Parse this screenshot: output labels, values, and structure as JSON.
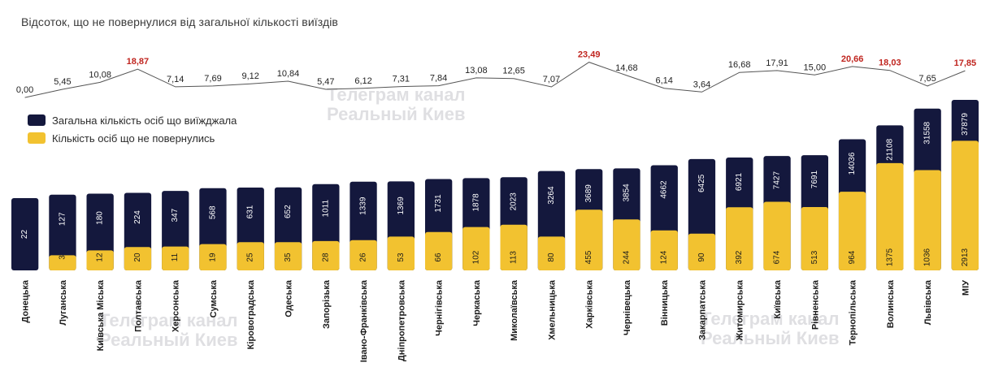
{
  "chart_data": {
    "type": "bar",
    "title": "Відсоток, що не повернулися від загальної кількості виїздів",
    "categories": [
      "Донецька",
      "Луганська",
      "Київська Міська",
      "Полтавська",
      "Херсонська",
      "Сумська",
      "Кіровоградська",
      "Одеська",
      "Запорізька",
      "Івано-Франківська",
      "Дніпропетровська",
      "Чернігівська",
      "Черкаська",
      "Миколаївська",
      "Хмельницька",
      "Харківська",
      "Чернівецька",
      "Вінницька",
      "Закарпатська",
      "Житомирська",
      "Київська",
      "Рівненська",
      "Тернопільська",
      "Волинська",
      "Львівська",
      "МІУ"
    ],
    "series": [
      {
        "name": "Загальна кількість осіб що виїжджала",
        "color": "#14183d",
        "values": [
          22,
          127,
          180,
          224,
          347,
          568,
          631,
          652,
          1011,
          1339,
          1369,
          1731,
          1878,
          2023,
          3264,
          3689,
          3854,
          4662,
          6425,
          6921,
          7427,
          7691,
          14036,
          21108,
          31558,
          37879
        ]
      },
      {
        "name": "Кількість осіб що не повернулись",
        "color": "#f2c230",
        "values": [
          null,
          3,
          12,
          20,
          11,
          19,
          25,
          35,
          28,
          26,
          53,
          66,
          102,
          113,
          80,
          455,
          244,
          124,
          90,
          392,
          674,
          513,
          964,
          1375,
          1036,
          2913
        ]
      },
      {
        "name": "",
        "color": "#222222",
        "values": [
          "0,00",
          "5,45",
          "10,08",
          "18,87",
          "7,14",
          "7,69",
          "9,12",
          "10,84",
          "5,47",
          "6,12",
          "7,31",
          "7,84",
          "13,08",
          "12,65",
          "7,07",
          "23,49",
          "14,68",
          "6,14",
          "3,64",
          "16,68",
          "17,91",
          "15,00",
          "20,66",
          "18,03",
          "7,65",
          "17,85"
        ]
      }
    ],
    "highlight_percents": [
      3,
      15,
      22,
      23,
      25
    ],
    "highlight_color": "#c0251f",
    "yellow_fill_fraction": [
      0,
      0.2,
      0.26,
      0.3,
      0.3,
      0.32,
      0.34,
      0.34,
      0.34,
      0.34,
      0.38,
      0.42,
      0.47,
      0.49,
      0.34,
      0.6,
      0.5,
      0.38,
      0.33,
      0.56,
      0.6,
      0.55,
      0.6,
      0.74,
      0.62,
      0.76
    ],
    "legend_position": "left-top",
    "grid": false
  },
  "watermark": {
    "line1": "Телеграм канал",
    "line2": "Реальный Киев"
  }
}
